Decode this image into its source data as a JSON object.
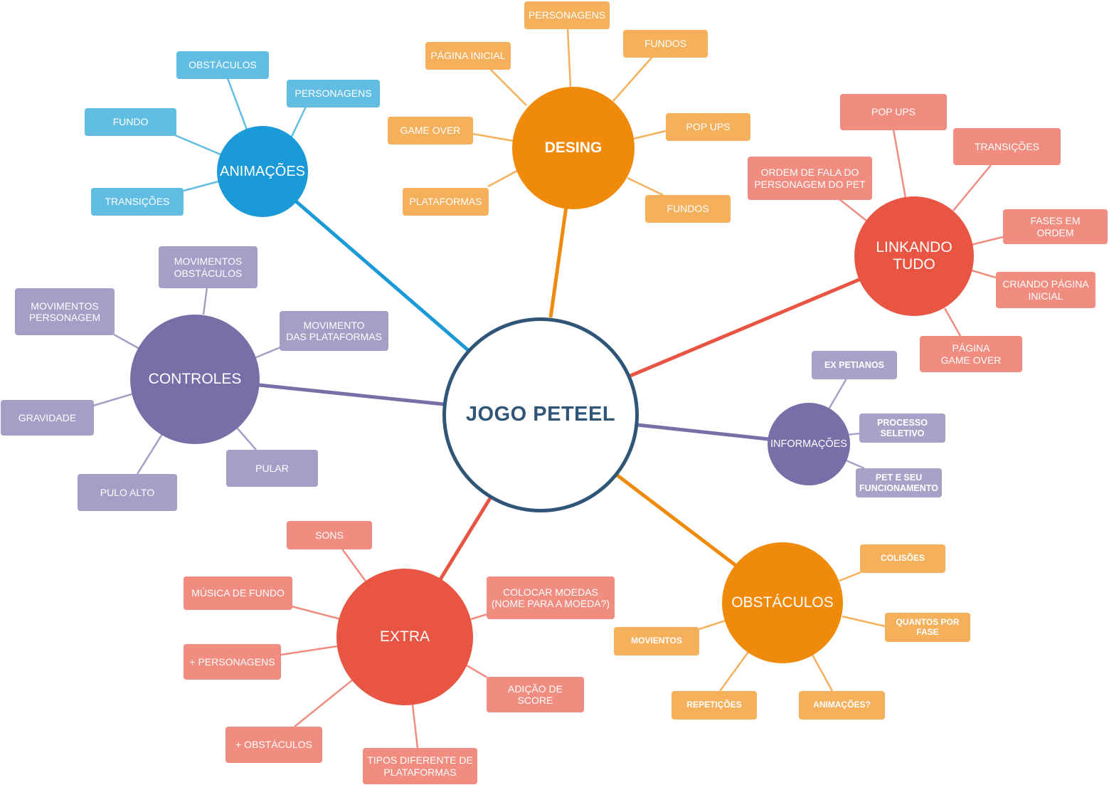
{
  "colors": {
    "center_border": "#2f5577",
    "blue": "#1a9ad6",
    "blue_leaf": "#62bde3",
    "orange": "#f08a0b",
    "orange_leaf": "#f5b05c",
    "red": "#e85542",
    "red_leaf": "#f08c80",
    "purple": "#776fa8",
    "purple_leaf": "#a39fc6",
    "lightpurple_leaf": "#a7a2c8"
  },
  "center": {
    "label": "JOGO PETEEL"
  },
  "hubs": {
    "animacoes": {
      "label": "ANIMAÇÕES"
    },
    "desing": {
      "label": "DESING"
    },
    "linkando": {
      "label": "LINKANDO\nTUDO"
    },
    "controles": {
      "label": "CONTROLES"
    },
    "informacoes": {
      "label": "INFORMAÇÕES"
    },
    "extra": {
      "label": "EXTRA"
    },
    "obstaculos": {
      "label": "OBSTÁCULOS"
    }
  },
  "leaves": {
    "animacoes": [
      "OBSTÁCULOS",
      "PERSONAGENS",
      "FUNDO",
      "TRANSIÇÕES"
    ],
    "desing": [
      "PERSONAGENS",
      "PÁGINA INICIAL",
      "FUNDOS",
      "POP UPS",
      "GAME OVER",
      "PLATAFORMAS",
      "FUNDOS"
    ],
    "linkando": [
      "POP UPS",
      "TRANSIÇÕES",
      "ORDEM DE FALA DO\nPERSONAGEM DO PET",
      "FASES EM\nORDEM",
      "CRIANDO PÁGINA\nINICIAL",
      "PÁGINA\nGAME OVER"
    ],
    "controles": [
      "MOVIMENTOS\nOBSTÁCULOS",
      "MOVIMENTOS\nPERSONAGEM",
      "MOVIMENTO\nDAS PLATAFORMAS",
      "GRAVIDADE",
      "PULAR",
      "PULO ALTO"
    ],
    "informacoes": [
      "EX PETIANOS",
      "PROCESSO\nSELETIVO",
      "PET E SEU\nFUNCIONAMENTO"
    ],
    "extra": [
      "SONS",
      "MÚSICA DE FUNDO",
      "COLOCAR MOEDAS\n(NOME PARA A MOEDA?)",
      "+ PERSONAGENS",
      "ADIÇÃO DE SCORE",
      "+ OBSTÁCULOS",
      "TIPOS DIFERENTE DE\nPLATAFORMAS"
    ],
    "obstaculos": [
      "COLISÕES",
      "QUANTOS POR\nFASE",
      "MOVIENTOS",
      "REPETIÇÕES",
      "ANIMAÇÕES?"
    ]
  }
}
